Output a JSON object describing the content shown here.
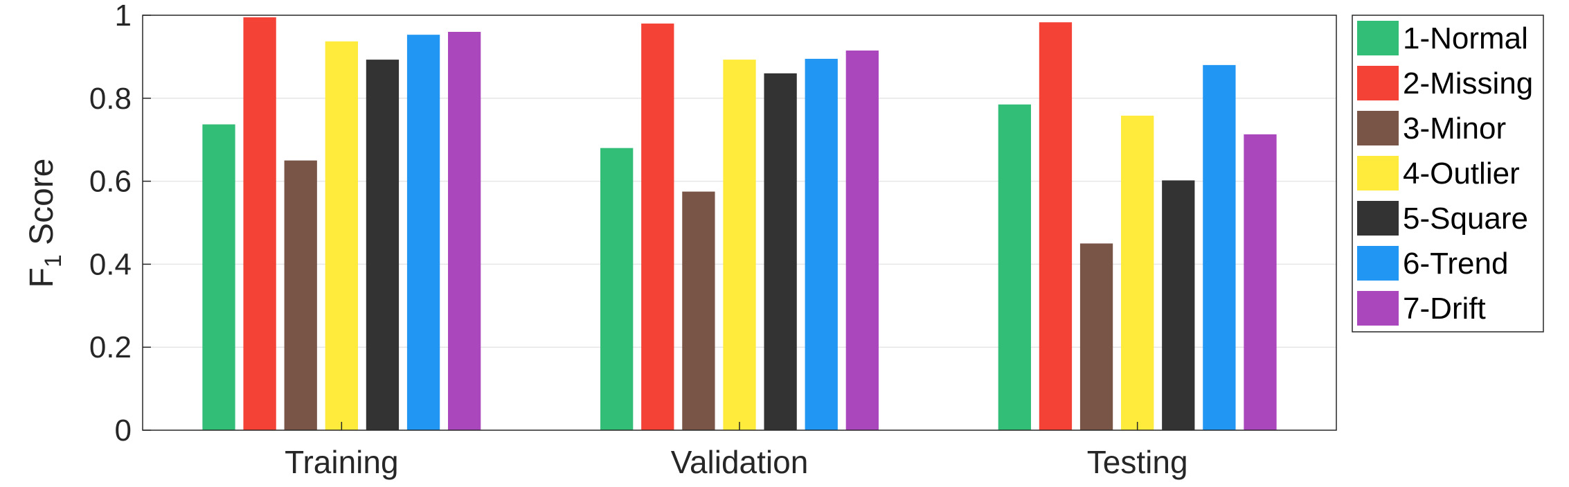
{
  "chart_data": {
    "type": "bar",
    "categories": [
      "Training",
      "Validation",
      "Testing"
    ],
    "series": [
      {
        "name": "1-Normal",
        "color": "#33be78",
        "values": [
          0.737,
          0.68,
          0.785
        ]
      },
      {
        "name": "2-Missing",
        "color": "#f44336",
        "values": [
          0.995,
          0.98,
          0.983
        ]
      },
      {
        "name": "3-Minor",
        "color": "#795548",
        "values": [
          0.65,
          0.575,
          0.45
        ]
      },
      {
        "name": "4-Outlier",
        "color": "#ffeb3b",
        "values": [
          0.937,
          0.893,
          0.758
        ]
      },
      {
        "name": "5-Square",
        "color": "#333333",
        "values": [
          0.893,
          0.86,
          0.602
        ]
      },
      {
        "name": "6-Trend",
        "color": "#2196f3",
        "values": [
          0.953,
          0.895,
          0.88
        ]
      },
      {
        "name": "7-Drift",
        "color": "#ab47bc",
        "values": [
          0.96,
          0.915,
          0.713
        ]
      }
    ],
    "ylabel": "F",
    "ylabel_subscript": "1",
    "ylabel_suffix": " Score",
    "ylim": [
      0,
      1
    ],
    "yticks": [
      0,
      0.2,
      0.4,
      0.6,
      0.8,
      1
    ],
    "ytick_labels": [
      "0",
      "0.2",
      "0.4",
      "0.6",
      "0.8",
      "1"
    ],
    "grid": "horizontal",
    "legend": "right-outside-top"
  }
}
